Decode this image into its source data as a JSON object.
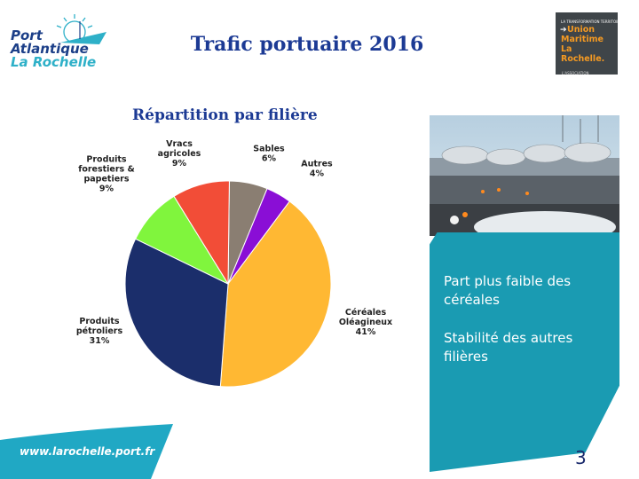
{
  "header": {
    "logo_line1": "Port",
    "logo_line2": "Atlantique",
    "logo_line3": "La Rochelle",
    "title": "Trafic portuaire 2016"
  },
  "partner_logo": {
    "small_text": "LA TRANSFORMATION TERRITOIRE",
    "words": [
      "Union",
      "Maritime",
      "La",
      "Rochelle."
    ],
    "footer_text": "L'ASSOCIATION"
  },
  "subtitle": "Répartition par filière",
  "chart_data": {
    "type": "pie",
    "title": "Répartition par filière",
    "slices": [
      {
        "label_lines": [
          "Sables",
          "6%"
        ],
        "value": 6,
        "color": "#8a7e72"
      },
      {
        "label_lines": [
          "Autres",
          "4%"
        ],
        "value": 4,
        "color": "#8a0ed6"
      },
      {
        "label_lines": [
          "Céréales",
          "Oléagineux",
          "41%"
        ],
        "value": 41,
        "color": "#ffb833"
      },
      {
        "label_lines": [
          "Produits",
          "pétroliers",
          "31%"
        ],
        "value": 31,
        "color": "#1b2e6b"
      },
      {
        "label_lines": [
          "Produits",
          "forestiers &",
          "papetiers",
          "9%"
        ],
        "value": 9,
        "color": "#80f53d"
      },
      {
        "label_lines": [
          "Vracs",
          "agricoles",
          "9%"
        ],
        "value": 9,
        "color": "#f24d37"
      }
    ]
  },
  "panel": {
    "point1": "Part plus faible des céréales",
    "point2": "Stabilité des autres filières",
    "page_number": "3"
  },
  "footer": {
    "url": "www.larochelle.port.fr"
  },
  "colors": {
    "title_blue": "#1c3a94",
    "panel_teal": "#1a9bb2",
    "footer_teal": "#20a8c4"
  }
}
